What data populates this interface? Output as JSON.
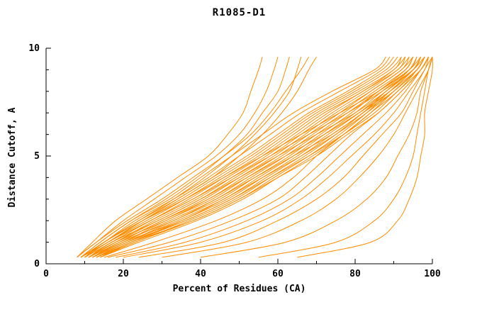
{
  "page": {
    "background": "#ffffff"
  },
  "chart_data": {
    "type": "line",
    "title": "R1085-D1",
    "xlabel": "Percent of Residues (CA)",
    "ylabel": "Distance Cutoff, A",
    "xlim": [
      0,
      100
    ],
    "ylim": [
      0,
      10
    ],
    "x_ticks": [
      0,
      20,
      40,
      60,
      80,
      100
    ],
    "y_ticks": [
      0,
      5,
      10
    ],
    "x_minor_ticks": [
      10,
      30,
      50,
      70,
      90
    ],
    "y_minor_ticks": [
      1,
      2,
      3,
      4,
      6,
      7,
      8,
      9
    ],
    "grid": false,
    "legend": "none",
    "line_color": "#ff8c00",
    "axis_color": "#000000",
    "y_samples": [
      0.3,
      1,
      2,
      3,
      4,
      5,
      6,
      7,
      8,
      9,
      9.6
    ],
    "series_x": [
      [
        8,
        12,
        18,
        26,
        34,
        42,
        47,
        51,
        53,
        55,
        56
      ],
      [
        8,
        13,
        20,
        28,
        36,
        44,
        50,
        54,
        57,
        59,
        60
      ],
      [
        9,
        14,
        22,
        31,
        39,
        46,
        52,
        56,
        60,
        62,
        63
      ],
      [
        9,
        15,
        24,
        33,
        41,
        48,
        54,
        59,
        63,
        65,
        66
      ],
      [
        8,
        13,
        21,
        30,
        38,
        46,
        53,
        58,
        62,
        66,
        68
      ],
      [
        9,
        16,
        25,
        34,
        43,
        50,
        56,
        61,
        65,
        68,
        70
      ],
      [
        9,
        14,
        22,
        32,
        40,
        48,
        56,
        64,
        74,
        85,
        88
      ],
      [
        9,
        15,
        23,
        33,
        42,
        50,
        58,
        66,
        76,
        86,
        89
      ],
      [
        10,
        15,
        24,
        34,
        43,
        52,
        60,
        68,
        78,
        87,
        90
      ],
      [
        10,
        16,
        25,
        35,
        44,
        53,
        61,
        69,
        79,
        88,
        91
      ],
      [
        10,
        16,
        26,
        36,
        45,
        54,
        62,
        70,
        80,
        89,
        92
      ],
      [
        10,
        17,
        27,
        37,
        46,
        55,
        63,
        71,
        81,
        90,
        92
      ],
      [
        11,
        17,
        27,
        38,
        47,
        56,
        64,
        72,
        82,
        90,
        93
      ],
      [
        11,
        18,
        28,
        39,
        48,
        57,
        65,
        73,
        82,
        91,
        93
      ],
      [
        11,
        18,
        29,
        40,
        49,
        58,
        66,
        74,
        83,
        91,
        94
      ],
      [
        11,
        19,
        30,
        41,
        50,
        59,
        67,
        75,
        84,
        92,
        94
      ],
      [
        12,
        19,
        30,
        42,
        51,
        60,
        68,
        76,
        84,
        92,
        95
      ],
      [
        12,
        20,
        31,
        43,
        52,
        61,
        69,
        77,
        85,
        93,
        95
      ],
      [
        12,
        20,
        32,
        44,
        53,
        62,
        70,
        78,
        86,
        93,
        95
      ],
      [
        12,
        21,
        33,
        45,
        54,
        63,
        71,
        79,
        86,
        94,
        96
      ],
      [
        13,
        21,
        34,
        46,
        55,
        64,
        72,
        80,
        87,
        94,
        96
      ],
      [
        13,
        22,
        35,
        47,
        56,
        65,
        73,
        81,
        88,
        94,
        96
      ],
      [
        13,
        22,
        36,
        48,
        57,
        66,
        74,
        82,
        88,
        95,
        97
      ],
      [
        13,
        23,
        37,
        49,
        58,
        67,
        75,
        82,
        89,
        95,
        97
      ],
      [
        14,
        23,
        38,
        50,
        59,
        68,
        76,
        83,
        89,
        95,
        97
      ],
      [
        14,
        24,
        39,
        51,
        60,
        69,
        77,
        84,
        90,
        96,
        98
      ],
      [
        10,
        15,
        25,
        36,
        46,
        56,
        66,
        76,
        86,
        94,
        97
      ],
      [
        10,
        16,
        27,
        38,
        48,
        58,
        68,
        78,
        87,
        95,
        97
      ],
      [
        11,
        17,
        29,
        40,
        50,
        60,
        70,
        80,
        88,
        95,
        98
      ],
      [
        11,
        18,
        31,
        42,
        52,
        62,
        72,
        81,
        89,
        96,
        98
      ],
      [
        12,
        19,
        33,
        44,
        54,
        64,
        74,
        82,
        90,
        96,
        98
      ],
      [
        12,
        20,
        35,
        46,
        56,
        66,
        75,
        83,
        90,
        96,
        98
      ],
      [
        13,
        21,
        36,
        48,
        58,
        68,
        77,
        85,
        91,
        97,
        99
      ],
      [
        14,
        22,
        38,
        50,
        60,
        70,
        78,
        86,
        92,
        97,
        99
      ],
      [
        15,
        28,
        44,
        56,
        64,
        70,
        77,
        84,
        91,
        96,
        98
      ],
      [
        16,
        32,
        48,
        60,
        67,
        73,
        79,
        86,
        92,
        97,
        99
      ],
      [
        18,
        36,
        52,
        63,
        70,
        76,
        82,
        88,
        93,
        97,
        99
      ],
      [
        20,
        40,
        56,
        66,
        73,
        79,
        85,
        90,
        94,
        98,
        99
      ],
      [
        24,
        46,
        60,
        70,
        77,
        82,
        87,
        92,
        95,
        98,
        100
      ],
      [
        30,
        52,
        66,
        75,
        81,
        86,
        90,
        93,
        96,
        99,
        100
      ],
      [
        40,
        62,
        75,
        83,
        88,
        91,
        94,
        96,
        97,
        99,
        100
      ],
      [
        55,
        75,
        85,
        90,
        93,
        95,
        96,
        97,
        98,
        99,
        100
      ],
      [
        65,
        84,
        91,
        94,
        96,
        97,
        98,
        98,
        99,
        100,
        100
      ]
    ]
  }
}
